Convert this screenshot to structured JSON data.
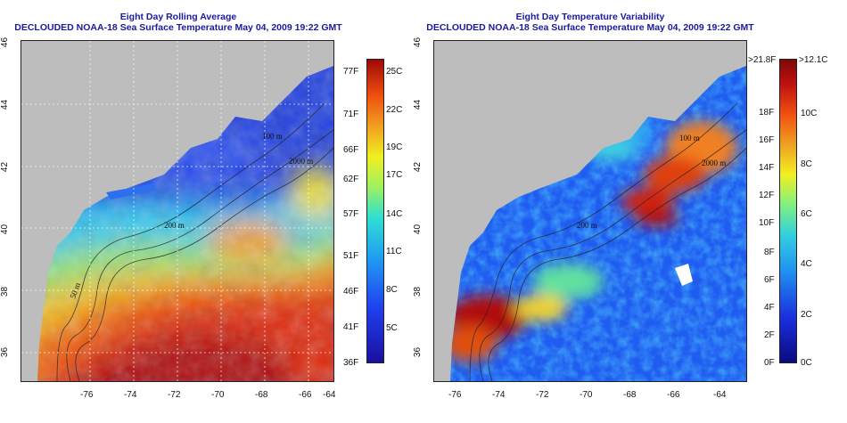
{
  "left_panel": {
    "title": "Eight Day Rolling Average",
    "subtitle": "DECLOUDED NOAA-18 Sea Surface Temperature May 04, 2009 19:22 GMT",
    "colorbar_labels_f": [
      "77F",
      "71F",
      "66F",
      "62F",
      "57F",
      "51F",
      "46F",
      "41F",
      "36F"
    ],
    "colorbar_labels_c": [
      "25C",
      "22C",
      "19C",
      "17C",
      "14C",
      "11C",
      "8C",
      "5C"
    ],
    "contour_labels": [
      "2000 m",
      "200 m",
      "50 m",
      "100 m"
    ]
  },
  "right_panel": {
    "title": "Eight Day Temperature Variability",
    "subtitle": "DECLOUDED NOAA-18 Sea Surface Temperature May 04, 2009 19:22 GMT",
    "colorbar_labels_f": [
      ">21.8F",
      "18F",
      "16F",
      "14F",
      "12F",
      "10F",
      "8F",
      "6F",
      "4F",
      "2F",
      "0F"
    ],
    "colorbar_labels_c": [
      ">12.1C",
      "10C",
      "8C",
      "6C",
      "4C",
      "2C",
      "0C"
    ],
    "contour_labels": [
      "100 m",
      "2000 m",
      "200 m"
    ]
  },
  "lon_ticks": [
    "-76",
    "-74",
    "-72",
    "-70",
    "-68",
    "-66",
    "-64"
  ],
  "lat_ticks": [
    "46",
    "44",
    "42",
    "40",
    "38",
    "36"
  ],
  "colors": {
    "land": "#bdbdbd",
    "title_blue": "#1a1aa0"
  }
}
